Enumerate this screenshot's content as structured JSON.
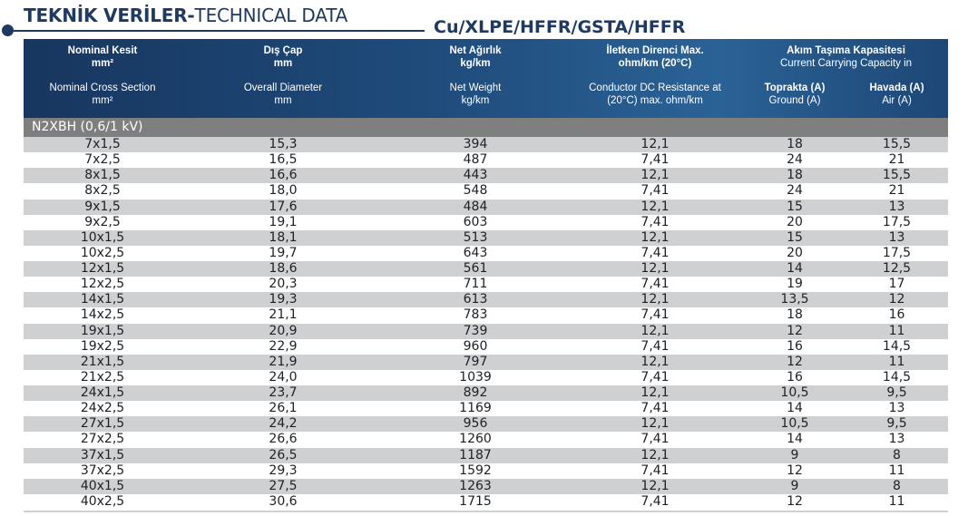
{
  "page": {
    "title_bold": "TEKNİK VERİLER-",
    "title_light": "TECHNICAL DATA",
    "product": "Cu/XLPE/HFFR/GSTA/HFFR"
  },
  "header": {
    "col1_tr": "Nominal Kesit",
    "col1_tr_unit": "mm²",
    "col1_en": "Nominal Cross Section",
    "col1_en_unit": "mm²",
    "col2_tr": "Dış Çap",
    "col2_tr_unit": "mm",
    "col2_en": "Overall Diameter",
    "col2_en_unit": "mm",
    "col3_tr": "Net Ağırlık",
    "col3_tr_unit": "kg/km",
    "col3_en": "Net Weight",
    "col3_en_unit": "kg/km",
    "col4_tr": "İletken Direnci Max.",
    "col4_tr_unit": "ohm/km (20°C)",
    "col4_en": "Conductor DC Resistance at",
    "col4_en_unit": "(20°C) max. ohm/km",
    "col56_tr": "Akım Taşıma Kapasitesi",
    "col56_en": "Current Carrying Capacity in",
    "col5_tr": "Toprakta (A)",
    "col5_en": "Ground (A)",
    "col6_tr": "Havada (A)",
    "col6_en": "Air (A)"
  },
  "section": "N2XBH (0,6/1 kV)",
  "rows": [
    [
      "7x1,5",
      "15,3",
      "394",
      "12,1",
      "18",
      "15,5"
    ],
    [
      "7x2,5",
      "16,5",
      "487",
      "7,41",
      "24",
      "21"
    ],
    [
      "8x1,5",
      "16,6",
      "443",
      "12,1",
      "18",
      "15,5"
    ],
    [
      "8x2,5",
      "18,0",
      "548",
      "7,41",
      "24",
      "21"
    ],
    [
      "9x1,5",
      "17,6",
      "484",
      "12,1",
      "15",
      "13"
    ],
    [
      "9x2,5",
      "19,1",
      "603",
      "7,41",
      "20",
      "17,5"
    ],
    [
      "10x1,5",
      "18,1",
      "513",
      "12,1",
      "15",
      "13"
    ],
    [
      "10x2,5",
      "19,7",
      "643",
      "7,41",
      "20",
      "17,5"
    ],
    [
      "12x1,5",
      "18,6",
      "561",
      "12,1",
      "14",
      "12,5"
    ],
    [
      "12x2,5",
      "20,3",
      "711",
      "7,41",
      "19",
      "17"
    ],
    [
      "14x1,5",
      "19,3",
      "613",
      "12,1",
      "13,5",
      "12"
    ],
    [
      "14x2,5",
      "21,1",
      "783",
      "7,41",
      "18",
      "16"
    ],
    [
      "19x1,5",
      "20,9",
      "739",
      "12,1",
      "12",
      "11"
    ],
    [
      "19x2,5",
      "22,9",
      "960",
      "7,41",
      "16",
      "14,5"
    ],
    [
      "21x1,5",
      "21,9",
      "797",
      "12,1",
      "12",
      "11"
    ],
    [
      "21x2,5",
      "24,0",
      "1039",
      "7,41",
      "16",
      "14,5"
    ],
    [
      "24x1,5",
      "23,7",
      "892",
      "12,1",
      "10,5",
      "9,5"
    ],
    [
      "24x2,5",
      "26,1",
      "1169",
      "7,41",
      "14",
      "13"
    ],
    [
      "27x1,5",
      "24,2",
      "956",
      "12,1",
      "10,5",
      "9,5"
    ],
    [
      "27x2,5",
      "26,6",
      "1260",
      "7,41",
      "14",
      "13"
    ],
    [
      "37x1,5",
      "26,5",
      "1187",
      "12,1",
      "9",
      "8"
    ],
    [
      "37x2,5",
      "29,3",
      "1592",
      "7,41",
      "12",
      "11"
    ],
    [
      "40x1,5",
      "27,5",
      "1263",
      "12,1",
      "9",
      "8"
    ],
    [
      "40x2,5",
      "30,6",
      "1715",
      "7,41",
      "12",
      "11"
    ]
  ]
}
